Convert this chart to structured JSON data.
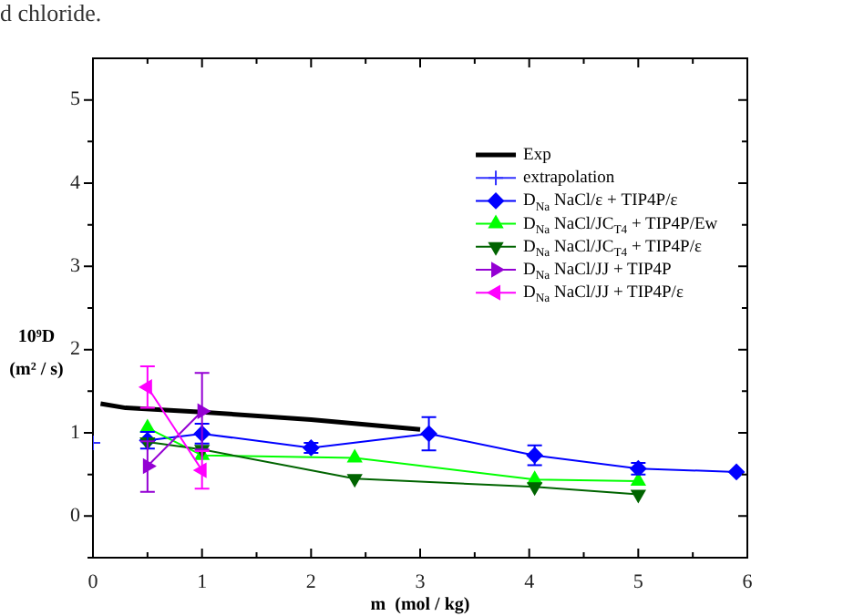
{
  "chart_data": {
    "type": "line",
    "xlabel": "m  (mol / kg)",
    "ylabel": "10⁹D (m² / s)",
    "annotations": [
      "d chloride."
    ],
    "xlim": [
      0,
      6
    ],
    "ylim": [
      -0.5,
      5.5
    ],
    "xticks": [
      0,
      {
        "value": 0.5,
        "label": null
      },
      1,
      {
        "value": 1.5,
        "label": null
      },
      2,
      {
        "value": 2.5,
        "label": null
      },
      3,
      {
        "value": 3.5,
        "label": null
      },
      4,
      {
        "value": 4.5,
        "label": null
      },
      5,
      {
        "value": 5.5,
        "label": null
      },
      6
    ],
    "yticks": [
      {
        "value": -0.5,
        "label": null
      },
      0,
      {
        "value": 0.5,
        "label": null
      },
      1,
      {
        "value": 1.5,
        "label": null
      },
      2,
      {
        "value": 2.5,
        "label": null
      },
      3,
      {
        "value": 3.5,
        "label": null
      },
      4,
      {
        "value": 4.5,
        "label": null
      },
      5
    ],
    "legend": "top right",
    "grid": false,
    "series": [
      {
        "name": "Exp",
        "color": "#000000",
        "marker": "none",
        "x": [
          0.07,
          0.3,
          1,
          2,
          3.0
        ],
        "values": [
          1.35,
          1.3,
          1.25,
          1.16,
          1.04
        ]
      },
      {
        "name": "extrapolation",
        "color": "#3333ff",
        "marker": "cross",
        "x": [
          0
        ],
        "values": [
          0.88
        ]
      },
      {
        "name": "D$_{Na}$ NaCl/ε + TIP4P/ε",
        "color": "#0000ff",
        "marker": "diamond",
        "x": [
          0.5,
          1,
          2,
          3.08,
          4.05,
          5,
          5.9
        ],
        "values": [
          0.91,
          0.99,
          0.82,
          0.99,
          0.73,
          0.57,
          0.53
        ],
        "errors": [
          0.1,
          0.12,
          0.06,
          0.2,
          0.12,
          0.07,
          null
        ]
      },
      {
        "name": "D$_{Na}$ NaCl/JC$_{T4}$ + TIP4P/Ew",
        "color": "#00ff00",
        "marker": "triangle-up",
        "x": [
          0.5,
          1,
          2.4,
          4.05,
          5
        ],
        "values": [
          1.06,
          0.73,
          0.7,
          0.44,
          0.42
        ]
      },
      {
        "name": "D$_{Na}$ NaCl/JC$_{T4}$ + TIP4P/ε",
        "color": "#006400",
        "marker": "triangle-down",
        "x": [
          0.5,
          1,
          2.4,
          4.05,
          5
        ],
        "values": [
          0.89,
          0.8,
          0.45,
          0.35,
          0.26
        ]
      },
      {
        "name": "D$_{Na}$ NaCl/JJ + TIP4P",
        "color": "#9400d3",
        "marker": "triangle-right",
        "x": [
          0.5,
          1
        ],
        "values": [
          0.6,
          1.26
        ],
        "errors": [
          [
            0.29,
            0.9
          ],
          [
            0.8,
            1.72
          ]
        ]
      },
      {
        "name": "D$_{Na}$ NaCl/JJ + TIP4P/ε",
        "color": "#ff00ff",
        "marker": "triangle-left",
        "x": [
          0.5,
          1
        ],
        "values": [
          1.55,
          0.55
        ],
        "errors": [
          [
            1.3,
            1.8
          ],
          [
            0.33,
            0.78
          ]
        ]
      }
    ]
  }
}
